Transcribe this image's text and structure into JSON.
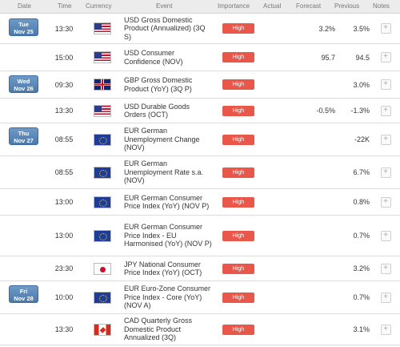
{
  "headers": {
    "date": "Date",
    "time": "Time",
    "currency": "Currency",
    "event": "Event",
    "importance": "Importance",
    "actual": "Actual",
    "forecast": "Forecast",
    "previous": "Previous",
    "notes": "Notes"
  },
  "notes_symbol": "+",
  "rows": [
    {
      "date_day": "Tue",
      "date_md": "Nov 25",
      "time": "13:30",
      "currency_icon": "us-flag-icon",
      "event": "USD Gross Domestic Product (Annualized) (3Q S)",
      "importance": "High",
      "actual": "",
      "forecast": "3.2%",
      "previous": "3.5%"
    },
    {
      "date_day": "",
      "date_md": "",
      "time": "15:00",
      "currency_icon": "us-flag-icon",
      "event": "USD Consumer Confidence (NOV)",
      "importance": "High",
      "actual": "",
      "forecast": "95.7",
      "previous": "94.5"
    },
    {
      "date_day": "Wed",
      "date_md": "Nov 26",
      "time": "09:30",
      "currency_icon": "gb-flag-icon",
      "event": "GBP Gross Domestic Product (YoY) (3Q P)",
      "importance": "High",
      "actual": "",
      "forecast": "",
      "previous": "3.0%"
    },
    {
      "date_day": "",
      "date_md": "",
      "time": "13:30",
      "currency_icon": "us-flag-icon",
      "event": "USD Durable Goods Orders (OCT)",
      "importance": "High",
      "actual": "",
      "forecast": "-0.5%",
      "previous": "-1.3%"
    },
    {
      "date_day": "Thu",
      "date_md": "Nov 27",
      "time": "08:55",
      "currency_icon": "eu-flag-icon",
      "event": "EUR German Unemployment Change (NOV)",
      "importance": "High",
      "actual": "",
      "forecast": "",
      "previous": "-22K"
    },
    {
      "date_day": "",
      "date_md": "",
      "time": "08:55",
      "currency_icon": "eu-flag-icon",
      "event": "EUR German Unemployment Rate s.a. (NOV)",
      "importance": "High",
      "actual": "",
      "forecast": "",
      "previous": "6.7%"
    },
    {
      "date_day": "",
      "date_md": "",
      "time": "13:00",
      "currency_icon": "eu-flag-icon",
      "event": "EUR German Consumer Price Index (YoY) (NOV P)",
      "importance": "High",
      "actual": "",
      "forecast": "",
      "previous": "0.8%"
    },
    {
      "date_day": "",
      "date_md": "",
      "time": "13:00",
      "currency_icon": "eu-flag-icon",
      "event": "EUR German Consumer Price Index - EU Harmonised (YoY) (NOV P)",
      "importance": "High",
      "actual": "",
      "forecast": "",
      "previous": "0.7%"
    },
    {
      "date_day": "",
      "date_md": "",
      "time": "23:30",
      "currency_icon": "jp-flag-icon",
      "event": "JPY National Consumer Price Index (YoY) (OCT)",
      "importance": "High",
      "actual": "",
      "forecast": "",
      "previous": "3.2%"
    },
    {
      "date_day": "Fri",
      "date_md": "Nov 28",
      "time": "10:00",
      "currency_icon": "eu-flag-icon",
      "event": "EUR Euro-Zone Consumer Price Index - Core (YoY) (NOV A)",
      "importance": "High",
      "actual": "",
      "forecast": "",
      "previous": "0.7%"
    },
    {
      "date_day": "",
      "date_md": "",
      "time": "13:30",
      "currency_icon": "ca-flag-icon",
      "event": "CAD Quarterly Gross Domestic Product Annualized (3Q)",
      "importance": "High",
      "actual": "",
      "forecast": "",
      "previous": "3.1%"
    }
  ]
}
